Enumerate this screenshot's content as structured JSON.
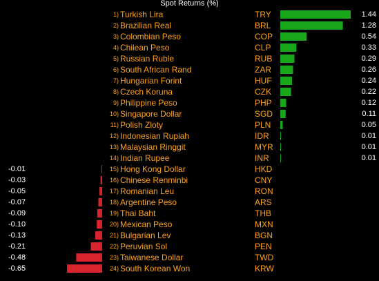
{
  "title": "Spot Returns (%)",
  "colors": {
    "positive": "#19a61b",
    "negative": "#d9232d",
    "text": "#ffffff",
    "label": "#ffa31a"
  },
  "chart_data": {
    "type": "bar",
    "orientation": "horizontal",
    "title": "Spot Returns (%)",
    "ranks": [
      "1)",
      "2)",
      "3)",
      "4)",
      "5)",
      "6)",
      "7)",
      "8)",
      "9)",
      "10)",
      "11)",
      "12)",
      "13)",
      "14)",
      "15)",
      "16)",
      "17)",
      "18)",
      "19)",
      "20)",
      "21)",
      "22)",
      "23)",
      "24)"
    ],
    "categories": [
      "Turkish Lira",
      "Brazilian Real",
      "Colombian Peso",
      "Chilean Peso",
      "Russian Ruble",
      "South African Rand",
      "Hungarian Forint",
      "Czech Koruna",
      "Philippine Peso",
      "Singapore Dollar",
      "Polish Zloty",
      "Indonesian Rupiah",
      "Malaysian Ringgit",
      "Indian Rupee",
      "Hong Kong Dollar",
      "Chinese Renminbi",
      "Romanian Leu",
      "Argentine Peso",
      "Thai Baht",
      "Mexican Peso",
      "Bulgarian Lev",
      "Peruvian Sol",
      "Taiwanese Dollar",
      "South Korean Won"
    ],
    "codes": [
      "TRY",
      "BRL",
      "COP",
      "CLP",
      "RUB",
      "ZAR",
      "HUF",
      "CZK",
      "PHP",
      "SGD",
      "PLN",
      "IDR",
      "MYR",
      "INR",
      "HKD",
      "CNY",
      "RON",
      "ARS",
      "THB",
      "MXN",
      "BGN",
      "PEN",
      "TWD",
      "KRW"
    ],
    "values": [
      1.44,
      1.28,
      0.54,
      0.33,
      0.29,
      0.26,
      0.24,
      0.22,
      0.12,
      0.11,
      0.05,
      0.01,
      0.01,
      0.01,
      -0.01,
      -0.03,
      -0.05,
      -0.07,
      -0.09,
      -0.1,
      -0.13,
      -0.21,
      -0.48,
      -0.65
    ],
    "value_labels": [
      "1.44",
      "1.28",
      "0.54",
      "0.33",
      "0.29",
      "0.26",
      "0.24",
      "0.22",
      "0.12",
      "0.11",
      "0.05",
      "0.01",
      "0.01",
      "0.01",
      "-0.01",
      "-0.03",
      "-0.05",
      "-0.07",
      "-0.09",
      "-0.10",
      "-0.13",
      "-0.21",
      "-0.48",
      "-0.65"
    ]
  }
}
